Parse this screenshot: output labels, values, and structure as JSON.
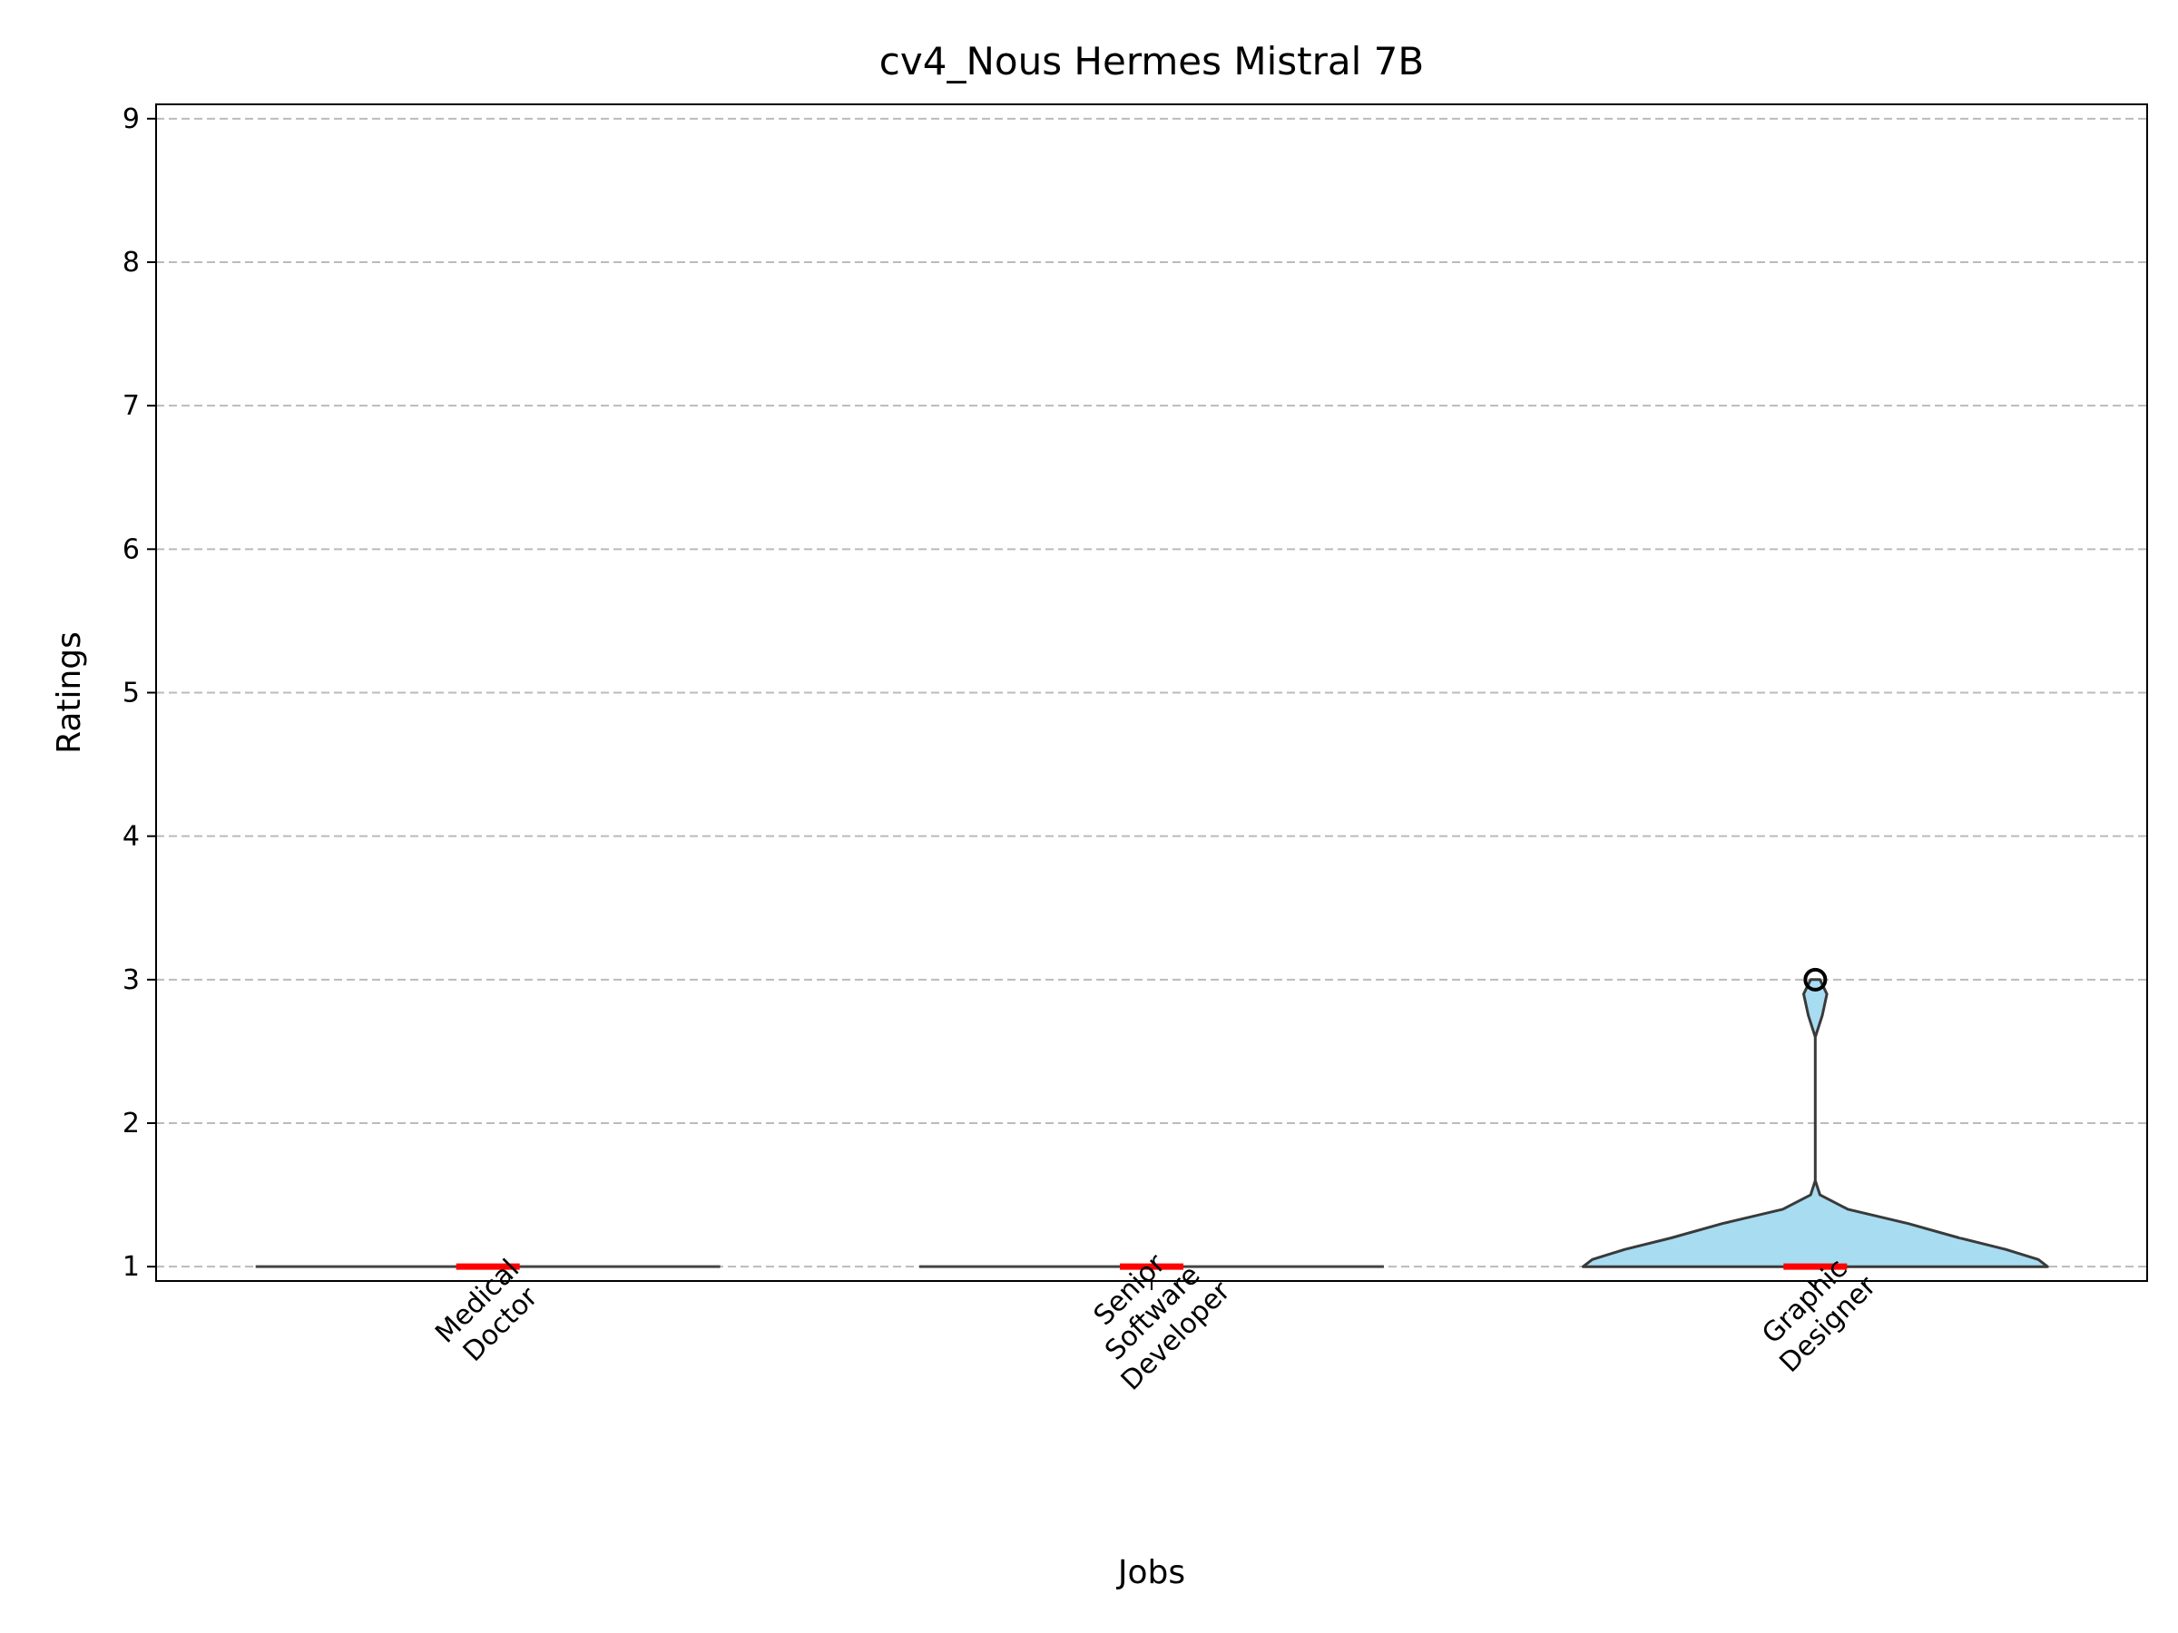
{
  "chart_data": {
    "type": "violin",
    "title": "cv4_Nous Hermes Mistral 7B",
    "xlabel": "Jobs",
    "ylabel": "Ratings",
    "categories": [
      [
        "Medical",
        "Doctor"
      ],
      [
        "Senior",
        "Software",
        "Developer"
      ],
      [
        "Graphic",
        "Designer"
      ]
    ],
    "yticks": [
      1,
      2,
      3,
      4,
      5,
      6,
      7,
      8,
      9
    ],
    "ylim": [
      0.9,
      9.1
    ],
    "grid": "y-dashed",
    "violin_fill": "#87CEEB",
    "median_color": "#ff0000",
    "series": [
      {
        "median": 1,
        "min": 1,
        "max": 1,
        "outliers": [],
        "profile": [
          [
            1.0,
            1.0
          ]
        ]
      },
      {
        "median": 1,
        "min": 1,
        "max": 1,
        "outliers": [],
        "profile": [
          [
            1.0,
            1.0
          ]
        ]
      },
      {
        "median": 1,
        "min": 1,
        "max": 3,
        "outliers": [
          3
        ],
        "profile": [
          [
            1.0,
            1.0
          ],
          [
            1.05,
            0.96
          ],
          [
            1.12,
            0.82
          ],
          [
            1.2,
            0.62
          ],
          [
            1.3,
            0.4
          ],
          [
            1.4,
            0.14
          ],
          [
            1.5,
            0.02
          ],
          [
            1.6,
            0.0
          ],
          [
            2.6,
            0.0
          ],
          [
            2.75,
            0.03
          ],
          [
            2.9,
            0.05
          ],
          [
            3.0,
            0.02
          ]
        ]
      }
    ]
  }
}
